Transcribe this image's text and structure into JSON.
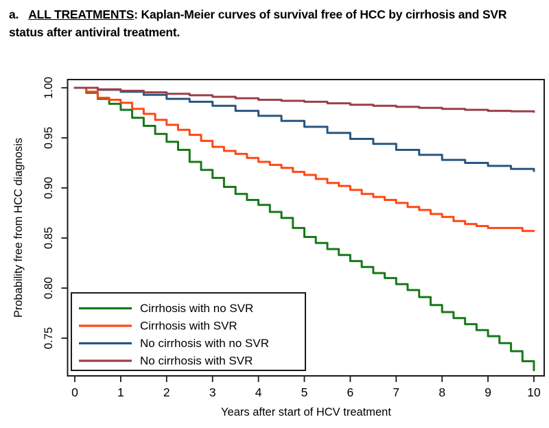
{
  "title": {
    "label": "a.",
    "underlined": "ALL TREATMENTS",
    "rest": ": Kaplan-Meier curves of survival free of HCC by cirrhosis and SVR status after antiviral treatment."
  },
  "chart_data": {
    "type": "line",
    "subtype": "kaplan-meier-step",
    "title": "",
    "xlabel": "Years after start of HCV treatment",
    "ylabel": "Probability free from HCC diagnosis",
    "xlim": [
      0,
      10
    ],
    "ylim": [
      0.72,
      1.0
    ],
    "grid": false,
    "legend_position": "bottom-left",
    "frame_color": "#1a1a1a",
    "xticks": [
      "0",
      "1",
      "2",
      "3",
      "4",
      "5",
      "6",
      "7",
      "8",
      "9",
      "10"
    ],
    "yticks": [
      "1.00",
      "0.95",
      "0.90",
      "0.85",
      "0.80",
      "0.75"
    ],
    "ytick_values": [
      1.0,
      0.95,
      0.9,
      0.85,
      0.8,
      0.75
    ],
    "xtick_values": [
      0,
      1,
      2,
      3,
      4,
      5,
      6,
      7,
      8,
      9,
      10
    ],
    "series": [
      {
        "name": "Cirrhosis with no SVR",
        "color": "#187818",
        "points": [
          [
            0,
            1.0
          ],
          [
            0.25,
            0.995
          ],
          [
            0.5,
            0.989
          ],
          [
            0.75,
            0.984
          ],
          [
            1,
            0.978
          ],
          [
            1.25,
            0.97
          ],
          [
            1.5,
            0.962
          ],
          [
            1.75,
            0.954
          ],
          [
            2,
            0.946
          ],
          [
            2.25,
            0.938
          ],
          [
            2.5,
            0.926
          ],
          [
            2.75,
            0.918
          ],
          [
            3,
            0.91
          ],
          [
            3.25,
            0.901
          ],
          [
            3.5,
            0.894
          ],
          [
            3.75,
            0.888
          ],
          [
            4,
            0.883
          ],
          [
            4.25,
            0.876
          ],
          [
            4.5,
            0.87
          ],
          [
            4.75,
            0.86
          ],
          [
            5,
            0.851
          ],
          [
            5.25,
            0.845
          ],
          [
            5.5,
            0.839
          ],
          [
            5.75,
            0.833
          ],
          [
            6,
            0.827
          ],
          [
            6.25,
            0.821
          ],
          [
            6.5,
            0.815
          ],
          [
            6.75,
            0.81
          ],
          [
            7,
            0.804
          ],
          [
            7.25,
            0.798
          ],
          [
            7.5,
            0.791
          ],
          [
            7.75,
            0.783
          ],
          [
            8,
            0.776
          ],
          [
            8.25,
            0.77
          ],
          [
            8.5,
            0.764
          ],
          [
            8.75,
            0.758
          ],
          [
            9,
            0.752
          ],
          [
            9.25,
            0.745
          ],
          [
            9.5,
            0.737
          ],
          [
            9.75,
            0.727
          ],
          [
            10,
            0.718
          ]
        ]
      },
      {
        "name": "Cirrhosis with SVR",
        "color": "#ff4713",
        "points": [
          [
            0,
            1.0
          ],
          [
            0.25,
            0.996
          ],
          [
            0.5,
            0.99
          ],
          [
            0.75,
            0.988
          ],
          [
            1,
            0.985
          ],
          [
            1.25,
            0.979
          ],
          [
            1.5,
            0.974
          ],
          [
            1.75,
            0.968
          ],
          [
            2,
            0.963
          ],
          [
            2.25,
            0.958
          ],
          [
            2.5,
            0.953
          ],
          [
            2.75,
            0.947
          ],
          [
            3,
            0.941
          ],
          [
            3.25,
            0.937
          ],
          [
            3.5,
            0.934
          ],
          [
            3.75,
            0.93
          ],
          [
            4,
            0.926
          ],
          [
            4.25,
            0.923
          ],
          [
            4.5,
            0.92
          ],
          [
            4.75,
            0.916
          ],
          [
            5,
            0.913
          ],
          [
            5.25,
            0.909
          ],
          [
            5.5,
            0.905
          ],
          [
            5.75,
            0.902
          ],
          [
            6,
            0.898
          ],
          [
            6.25,
            0.894
          ],
          [
            6.5,
            0.891
          ],
          [
            6.75,
            0.888
          ],
          [
            7,
            0.885
          ],
          [
            7.25,
            0.881
          ],
          [
            7.5,
            0.878
          ],
          [
            7.75,
            0.874
          ],
          [
            8,
            0.871
          ],
          [
            8.25,
            0.867
          ],
          [
            8.5,
            0.864
          ],
          [
            8.75,
            0.862
          ],
          [
            9,
            0.86
          ],
          [
            9.5,
            0.86
          ],
          [
            9.75,
            0.857
          ],
          [
            10,
            0.857
          ]
        ]
      },
      {
        "name": "No cirrhosis with no SVR",
        "color": "#28567f",
        "points": [
          [
            0,
            1.0
          ],
          [
            0.5,
            0.998
          ],
          [
            1,
            0.996
          ],
          [
            1.5,
            0.993
          ],
          [
            2,
            0.989
          ],
          [
            2.5,
            0.986
          ],
          [
            3,
            0.982
          ],
          [
            3.5,
            0.977
          ],
          [
            4,
            0.972
          ],
          [
            4.5,
            0.967
          ],
          [
            5,
            0.961
          ],
          [
            5.5,
            0.955
          ],
          [
            6,
            0.949
          ],
          [
            6.5,
            0.944
          ],
          [
            7,
            0.938
          ],
          [
            7.5,
            0.933
          ],
          [
            8,
            0.928
          ],
          [
            8.5,
            0.925
          ],
          [
            9,
            0.922
          ],
          [
            9.5,
            0.919
          ],
          [
            10,
            0.917
          ]
        ]
      },
      {
        "name": "No cirrhosis with SVR",
        "color": "#9c3f48",
        "points": [
          [
            0,
            1.0
          ],
          [
            0.5,
            0.9985
          ],
          [
            1,
            0.997
          ],
          [
            1.5,
            0.9955
          ],
          [
            2,
            0.994
          ],
          [
            2.5,
            0.9925
          ],
          [
            3,
            0.991
          ],
          [
            3.5,
            0.9895
          ],
          [
            4,
            0.988
          ],
          [
            4.5,
            0.987
          ],
          [
            5,
            0.986
          ],
          [
            5.5,
            0.9845
          ],
          [
            6,
            0.983
          ],
          [
            6.5,
            0.982
          ],
          [
            7,
            0.981
          ],
          [
            7.5,
            0.98
          ],
          [
            8,
            0.979
          ],
          [
            8.5,
            0.978
          ],
          [
            9,
            0.977
          ],
          [
            9.5,
            0.9765
          ],
          [
            10,
            0.976
          ]
        ]
      }
    ]
  }
}
